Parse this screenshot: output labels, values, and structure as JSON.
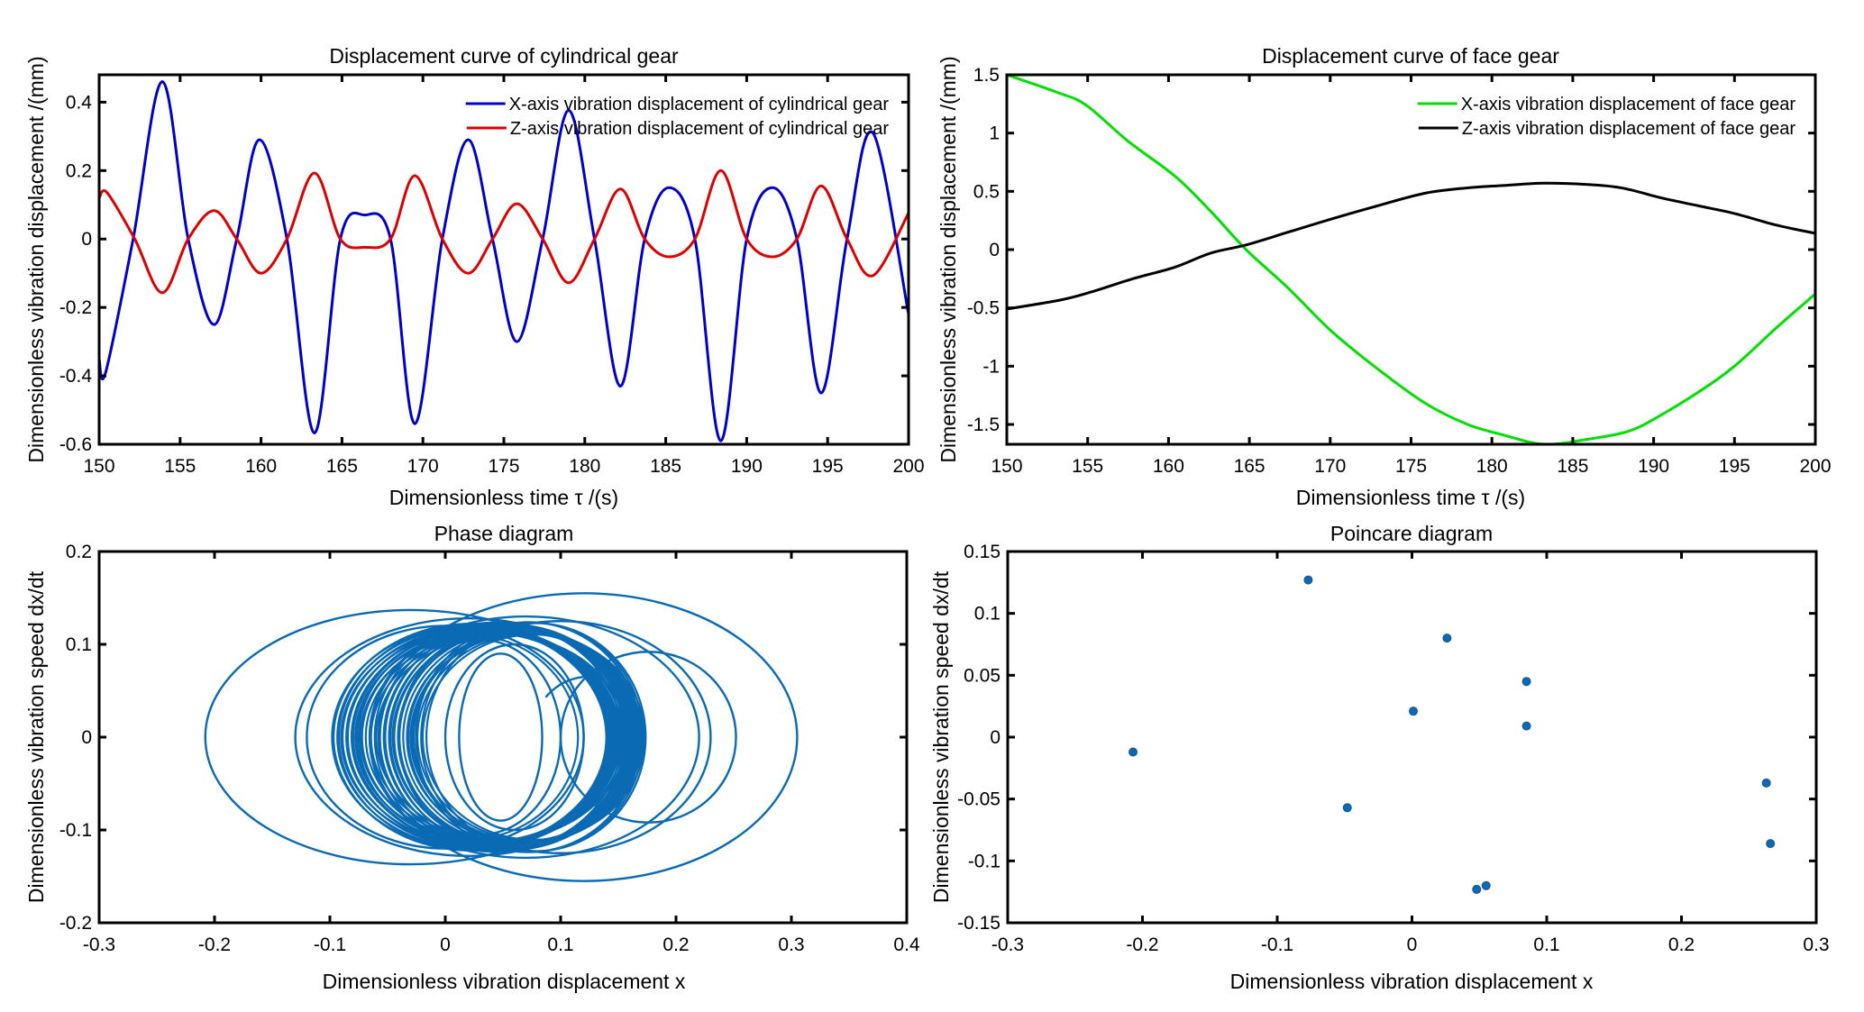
{
  "chart_data": [
    {
      "id": "cyl",
      "type": "line",
      "title": "Displacement curve of cylindrical gear",
      "xlabel": "Dimensionless time τ /(s)",
      "ylabel": "Dimensionless vibration displacement /(mm)",
      "xlim": [
        150,
        200
      ],
      "ylim": [
        -0.6,
        0.48
      ],
      "xticks": [
        150,
        155,
        160,
        165,
        170,
        175,
        180,
        185,
        190,
        195,
        200
      ],
      "xtick_labels": [
        "150",
        "155",
        "160",
        "165",
        "170",
        "175",
        "180",
        "185",
        "190",
        "195",
        "200"
      ],
      "yticks": [
        -0.6,
        -0.4,
        -0.2,
        0,
        0.2,
        0.4
      ],
      "ytick_labels": [
        "-0.6",
        "-0.4",
        "-0.2",
        "0",
        "0.2",
        "0.4"
      ],
      "grid": false,
      "legend_position": "top-right",
      "series": [
        {
          "name": "X-axis vibration displacement of cylindrical gear",
          "color": "#0000cc",
          "x": [
            150,
            150.4,
            152.1,
            153.9,
            155.5,
            157.1,
            158.5,
            159.9,
            161.6,
            163.3,
            164.9,
            166.4,
            168.0,
            169.5,
            171.2,
            172.8,
            174.3,
            175.8,
            177.4,
            179.0,
            180.6,
            182.2,
            183.7,
            185.2,
            186.8,
            188.4,
            190.0,
            191.6,
            193.1,
            194.6,
            196.2,
            197.8,
            200
          ],
          "y": [
            -0.35,
            -0.39,
            0.0,
            0.46,
            0.0,
            -0.25,
            0.0,
            0.29,
            0.0,
            -0.567,
            0.0,
            0.07,
            0.0,
            -0.54,
            0.0,
            0.29,
            0.0,
            -0.3,
            0.0,
            0.376,
            0.0,
            -0.43,
            0.0,
            0.15,
            0.0,
            -0.59,
            0.0,
            0.15,
            0.0,
            -0.45,
            0.0,
            0.31,
            -0.22
          ]
        },
        {
          "name": "Z-axis vibration displacement of cylindrical gear",
          "color": "#dd0000",
          "x": [
            150,
            150.5,
            152.2,
            153.9,
            155.5,
            157.1,
            158.5,
            160.0,
            161.6,
            163.3,
            164.9,
            166.4,
            168.0,
            169.5,
            171.2,
            172.8,
            174.3,
            175.8,
            177.4,
            179.0,
            180.6,
            182.2,
            183.7,
            185.2,
            186.8,
            188.4,
            190.0,
            191.6,
            193.1,
            194.6,
            196.2,
            197.8,
            200
          ],
          "y": [
            0.12,
            0.135,
            0.0,
            -0.157,
            0.0,
            0.083,
            0.0,
            -0.1,
            0.0,
            0.193,
            0.0,
            -0.024,
            0.0,
            0.185,
            0.0,
            -0.1,
            0.0,
            0.103,
            0.0,
            -0.128,
            0.0,
            0.146,
            0.0,
            -0.052,
            0.0,
            0.2,
            0.0,
            -0.052,
            0.0,
            0.155,
            0.0,
            -0.107,
            0.076
          ]
        }
      ]
    },
    {
      "id": "face",
      "type": "line",
      "title": "Displacement curve of face gear",
      "xlabel": "Dimensionless time τ /(s)",
      "ylabel": "Dimensionless vibration displacement /(mm)",
      "xlim": [
        150,
        200
      ],
      "ylim": [
        -1.67,
        1.5
      ],
      "xticks": [
        150,
        155,
        160,
        165,
        170,
        175,
        180,
        185,
        190,
        195,
        200
      ],
      "xtick_labels": [
        "150",
        "155",
        "160",
        "165",
        "170",
        "175",
        "180",
        "185",
        "190",
        "195",
        "200"
      ],
      "yticks": [
        -1.5,
        -1,
        -0.5,
        0,
        0.5,
        1,
        1.5
      ],
      "ytick_labels": [
        "-1.5",
        "-1",
        "-0.5",
        "0",
        "0.5",
        "1",
        "1.5"
      ],
      "grid": false,
      "legend_position": "top-right",
      "series": [
        {
          "name": "X-axis vibration displacement of face gear",
          "color": "#00e000",
          "x": [
            150,
            153.1,
            154.9,
            157.5,
            160.4,
            162.6,
            164.8,
            167.4,
            170.0,
            172.9,
            175.9,
            178.5,
            180.7,
            183.2,
            185.8,
            188.4,
            190.2,
            192.8,
            195.0,
            197.6,
            200
          ],
          "y": [
            1.5,
            1.35,
            1.24,
            0.93,
            0.63,
            0.33,
            0.0,
            -0.33,
            -0.69,
            -1.02,
            -1.32,
            -1.5,
            -1.59,
            -1.67,
            -1.63,
            -1.56,
            -1.44,
            -1.22,
            -1.0,
            -0.67,
            -0.38
          ]
        },
        {
          "name": "Z-axis vibration displacement of face gear",
          "color": "#000000",
          "x": [
            150,
            153.4,
            155.3,
            157.8,
            160.4,
            162.6,
            164.8,
            167.4,
            170.0,
            172.9,
            175.9,
            178.5,
            180.7,
            183.2,
            185.8,
            188.0,
            190.6,
            192.8,
            195.0,
            197.6,
            200
          ],
          "y": [
            -0.51,
            -0.43,
            -0.36,
            -0.25,
            -0.15,
            -0.03,
            0.04,
            0.15,
            0.26,
            0.375,
            0.485,
            0.53,
            0.55,
            0.57,
            0.56,
            0.53,
            0.44,
            0.375,
            0.31,
            0.21,
            0.14
          ]
        }
      ]
    },
    {
      "id": "phase",
      "type": "line",
      "title": "Phase diagram",
      "xlabel": "Dimensionless vibration displacement x",
      "ylabel": "Dimensionless vibration speed dx/dt",
      "xlim": [
        -0.3,
        0.4
      ],
      "ylim": [
        -0.2,
        0.2
      ],
      "xticks": [
        -0.3,
        -0.2,
        -0.1,
        0,
        0.1,
        0.2,
        0.3,
        0.4
      ],
      "xtick_labels": [
        "-0.3",
        "-0.2",
        "-0.1",
        "0",
        "0.1",
        "0.2",
        "0.3",
        "0.4"
      ],
      "yticks": [
        -0.2,
        -0.1,
        0,
        0.1,
        0.2
      ],
      "ytick_labels": [
        "-0.2",
        "-0.1",
        "0",
        "0.1",
        "0.2"
      ],
      "grid": false,
      "color": "#0a6ab4",
      "orbits_note": "approximate elliptical orbits: center x, half-width in x, half-height in dx/dt",
      "orbits": [
        {
          "cx": -0.03,
          "rx": 0.178,
          "ry": 0.137
        },
        {
          "cx": 0.12,
          "rx": 0.185,
          "ry": 0.155
        },
        {
          "cx": 0.176,
          "rx": 0.076,
          "ry": 0.092
        },
        {
          "cx": 0.02,
          "rx": 0.15,
          "ry": 0.128
        },
        {
          "cx": 0.07,
          "rx": 0.15,
          "ry": 0.13
        },
        {
          "cx": 0.0,
          "rx": 0.12,
          "ry": 0.12
        },
        {
          "cx": 0.1,
          "rx": 0.13,
          "ry": 0.125
        },
        {
          "cx": 0.048,
          "rx": 0.036,
          "ry": 0.09
        },
        {
          "cx": 0.06,
          "rx": 0.06,
          "ry": 0.1
        },
        {
          "cx": 0.03,
          "rx": 0.07,
          "ry": 0.105
        }
      ],
      "dense_band": {
        "cx_range": [
          0.02,
          0.08
        ],
        "rx_range": [
          0.095,
          0.12
        ],
        "ry_range": [
          0.11,
          0.125
        ],
        "count": 40
      }
    },
    {
      "id": "poincare",
      "type": "scatter",
      "title": "Poincare diagram",
      "xlabel": "Dimensionless vibration displacement x",
      "ylabel": "Dimensionless vibration speed dx/dt",
      "xlim": [
        -0.3,
        0.3
      ],
      "ylim": [
        -0.15,
        0.15
      ],
      "xticks": [
        -0.3,
        -0.2,
        -0.1,
        0,
        0.1,
        0.2,
        0.3
      ],
      "xtick_labels": [
        "-0.3",
        "-0.2",
        "-0.1",
        "0",
        "0.1",
        "0.2",
        "0.3"
      ],
      "yticks": [
        -0.15,
        -0.1,
        -0.05,
        0,
        0.05,
        0.1,
        0.15
      ],
      "ytick_labels": [
        "-0.15",
        "-0.1",
        "-0.05",
        "0",
        "0.05",
        "0.1",
        "0.15"
      ],
      "grid": false,
      "color": "#0a6ab4",
      "points": [
        {
          "x": -0.077,
          "y": 0.127
        },
        {
          "x": 0.026,
          "y": 0.08
        },
        {
          "x": 0.085,
          "y": 0.045
        },
        {
          "x": 0.001,
          "y": 0.021
        },
        {
          "x": 0.085,
          "y": 0.009
        },
        {
          "x": -0.207,
          "y": -0.012
        },
        {
          "x": -0.048,
          "y": -0.057
        },
        {
          "x": 0.263,
          "y": -0.037
        },
        {
          "x": 0.266,
          "y": -0.086
        },
        {
          "x": 0.048,
          "y": -0.123
        },
        {
          "x": 0.055,
          "y": -0.12
        }
      ]
    }
  ]
}
